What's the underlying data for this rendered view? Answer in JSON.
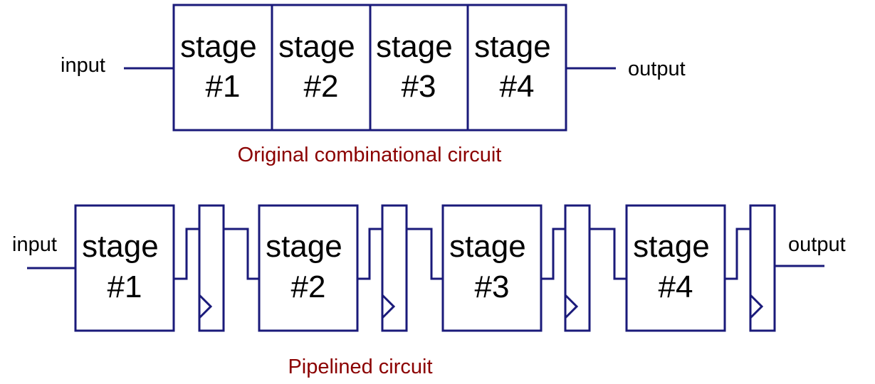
{
  "colors": {
    "line": "#1a1a7a",
    "caption": "#8b0000",
    "text": "#000000"
  },
  "top": {
    "input_label": "input",
    "output_label": "output",
    "caption": "Original combinational circuit",
    "stages": [
      {
        "line1": "stage",
        "line2": "#1"
      },
      {
        "line1": "stage",
        "line2": "#2"
      },
      {
        "line1": "stage",
        "line2": "#3"
      },
      {
        "line1": "stage",
        "line2": "#4"
      }
    ]
  },
  "bottom": {
    "input_label": "input",
    "output_label": "output",
    "caption": "Pipelined circuit",
    "stages": [
      {
        "line1": "stage",
        "line2": "#1"
      },
      {
        "line1": "stage",
        "line2": "#2"
      },
      {
        "line1": "stage",
        "line2": "#3"
      },
      {
        "line1": "stage",
        "line2": "#4"
      }
    ]
  }
}
